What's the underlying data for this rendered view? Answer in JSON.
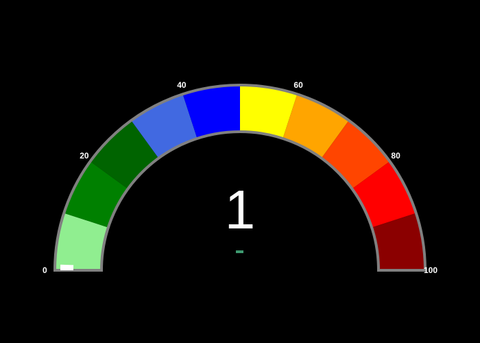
{
  "chart_data": {
    "type": "gauge",
    "value": 1,
    "value_label": "1",
    "axis_range": [
      0,
      100
    ],
    "ticks": [
      {
        "value": 0,
        "label": "0"
      },
      {
        "value": 20,
        "label": "20"
      },
      {
        "value": 40,
        "label": "40"
      },
      {
        "value": 60,
        "label": "60"
      },
      {
        "value": 80,
        "label": "80"
      },
      {
        "value": 100,
        "label": "100"
      }
    ],
    "steps": [
      {
        "range": [
          0,
          10
        ],
        "color": "#90ee90"
      },
      {
        "range": [
          10,
          20
        ],
        "color": "#008000"
      },
      {
        "range": [
          20,
          30
        ],
        "color": "#006400"
      },
      {
        "range": [
          30,
          40
        ],
        "color": "#4169e1"
      },
      {
        "range": [
          40,
          50
        ],
        "color": "#0000ff"
      },
      {
        "range": [
          50,
          60
        ],
        "color": "#ffff00"
      },
      {
        "range": [
          60,
          70
        ],
        "color": "#ffa500"
      },
      {
        "range": [
          70,
          80
        ],
        "color": "#ff4500"
      },
      {
        "range": [
          80,
          90
        ],
        "color": "#ff0000"
      },
      {
        "range": [
          90,
          100
        ],
        "color": "#8b0000"
      }
    ],
    "bar_color": "#ffffff",
    "border_color": "#808080",
    "background_color": "#000000",
    "indicator_color": "#3d9970"
  }
}
